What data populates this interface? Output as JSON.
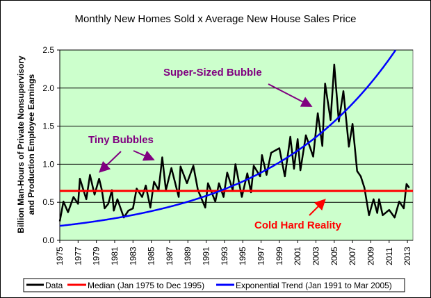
{
  "chart_data": {
    "type": "line",
    "title": "Monthly New Homes Sold x Average New House Sales Price",
    "ylabel": [
      "Billion Man-Hours of Private Nonsupervisory",
      "and Production Employee Earnings"
    ],
    "xlabel": "",
    "ylim": [
      0,
      2.5
    ],
    "yticks": [
      "0.0",
      "0.5",
      "1.0",
      "1.5",
      "2.0",
      "2.5"
    ],
    "xlim": [
      1975,
      2013.6
    ],
    "xticks": [
      "1975",
      "1977",
      "1979",
      "1981",
      "1983",
      "1985",
      "1987",
      "1989",
      "1991",
      "1993",
      "1995",
      "1997",
      "1999",
      "2001",
      "2003",
      "2005",
      "2007",
      "2009",
      "2011",
      "2013"
    ],
    "grid": "horizontal",
    "legend_position": "bottom",
    "plot_background": "#ccffcc",
    "series": [
      {
        "name": "Data",
        "color": "#000000",
        "x": [
          1975.0,
          1975.4,
          1975.9,
          1976.5,
          1977.0,
          1977.2,
          1977.9,
          1978.3,
          1978.8,
          1979.3,
          1979.6,
          1979.9,
          1980.3,
          1980.7,
          1980.9,
          1981.3,
          1982.0,
          1982.5,
          1983.0,
          1983.4,
          1984.0,
          1984.4,
          1984.9,
          1985.3,
          1985.8,
          1986.2,
          1986.6,
          1987.2,
          1988.0,
          1988.2,
          1988.9,
          1989.6,
          1990.1,
          1990.9,
          1991.2,
          1992.0,
          1992.4,
          1992.9,
          1993.3,
          1993.9,
          1994.2,
          1994.9,
          1995.5,
          1995.9,
          1996.2,
          1996.9,
          1997.1,
          1997.6,
          1998.1,
          1999.0,
          1999.6,
          2000.2,
          2000.6,
          2001.0,
          2001.3,
          2001.9,
          2002.7,
          2003.2,
          2003.7,
          2004.0,
          2004.6,
          2005.0,
          2005.5,
          2006.0,
          2006.6,
          2007.0,
          2007.5,
          2007.9,
          2008.3,
          2008.8,
          2009.3,
          2009.7,
          2009.9,
          2010.3,
          2011.0,
          2011.6,
          2012.1,
          2012.6,
          2012.9,
          2013.2
        ],
        "values": [
          0.25,
          0.51,
          0.37,
          0.57,
          0.48,
          0.81,
          0.54,
          0.86,
          0.6,
          0.81,
          0.66,
          0.42,
          0.48,
          0.66,
          0.39,
          0.54,
          0.3,
          0.39,
          0.42,
          0.68,
          0.57,
          0.72,
          0.43,
          0.77,
          0.66,
          1.09,
          0.66,
          0.95,
          0.57,
          0.97,
          0.75,
          0.98,
          0.66,
          0.43,
          0.75,
          0.51,
          0.75,
          0.57,
          0.89,
          0.66,
          1.0,
          0.57,
          0.88,
          0.63,
          0.98,
          0.84,
          1.12,
          0.86,
          1.15,
          1.21,
          0.84,
          1.36,
          0.94,
          1.33,
          0.92,
          1.38,
          1.1,
          1.67,
          1.24,
          2.06,
          1.58,
          2.31,
          1.56,
          1.96,
          1.23,
          1.53,
          0.91,
          0.84,
          0.69,
          0.33,
          0.54,
          0.36,
          0.54,
          0.33,
          0.4,
          0.3,
          0.51,
          0.42,
          0.74,
          0.69
        ]
      },
      {
        "name": "Median (Jan 1975 to Dec 1995)",
        "color": "#ff0000",
        "value": 0.65
      },
      {
        "name": "Exponential Trend (Jan 1991 to Mar 2005)",
        "color": "#0000ff",
        "start_value_1975": 0.19,
        "annual_growth_rate": 0.0702
      }
    ],
    "annotations": [
      {
        "text": "Super-Sized Bubble",
        "color": "#800080"
      },
      {
        "text": "Tiny Bubbles",
        "color": "#800080"
      },
      {
        "text": "Cold Hard Reality",
        "color": "#ff0000"
      }
    ]
  }
}
